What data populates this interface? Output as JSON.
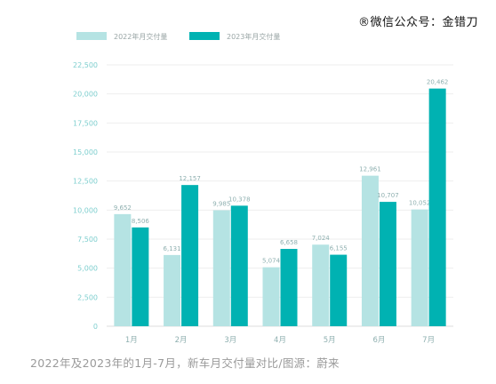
{
  "watermark": "®icon微信公众号：金错刀",
  "caption": "2022年及2023年的1月-7月，新车月交付量对比/图源：蔚来",
  "colors": {
    "series_2022": "#b5e3e3",
    "series_2023": "#00b2b2",
    "axis_text": "#7fcfcf",
    "grid": "#eeeeee"
  },
  "chart_data": {
    "type": "bar",
    "categories": [
      "1月",
      "2月",
      "3月",
      "4月",
      "5月",
      "6月",
      "7月"
    ],
    "series": [
      {
        "name": "2022年月交付量",
        "values": [
          9652,
          6131,
          9985,
          5074,
          7024,
          12961,
          10052
        ],
        "labels": [
          "9,652",
          "6,131",
          "9,985",
          "5,074",
          "7,024",
          "12,961",
          "10,052"
        ]
      },
      {
        "name": "2023年月交付量",
        "values": [
          8506,
          12157,
          10378,
          6658,
          6155,
          10707,
          20462
        ],
        "labels": [
          "8,506",
          "12,157",
          "10,378",
          "6,658",
          "6,155",
          "10,707",
          "20,462"
        ]
      }
    ],
    "yticks": [
      0,
      2500,
      5000,
      7500,
      10000,
      12500,
      15000,
      17500,
      20000,
      22500
    ],
    "ytick_labels": [
      "0",
      "2,500",
      "5,000",
      "7,500",
      "10,000",
      "12,500",
      "15,000",
      "17,500",
      "20,000",
      "22,500"
    ],
    "ylim": [
      0,
      22500
    ],
    "grid": true,
    "legend": "top-left"
  }
}
